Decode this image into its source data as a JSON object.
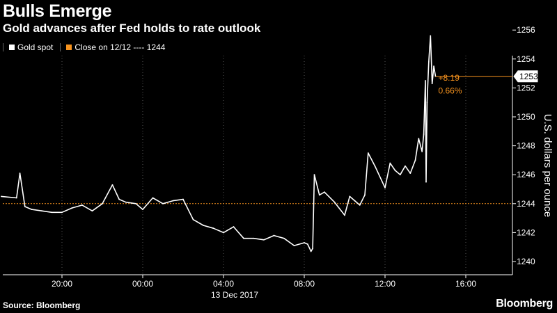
{
  "header": {
    "title": "Bulls Emerge",
    "subtitle": "Gold advances after Fed holds to rate outlook"
  },
  "legend": {
    "gold_label": "Gold spot",
    "close_label": "Close on 12/12 ---- 1244"
  },
  "footer": {
    "source": "Source: Bloomberg",
    "brand": "Bloomberg"
  },
  "colors": {
    "background": "#000000",
    "series": "#ffffff",
    "reference": "#f7931e",
    "grid": "#555555"
  },
  "chart_data": {
    "type": "line",
    "title": "Bulls Emerge",
    "subtitle": "Gold advances after Fed holds to rate outlook",
    "xlabel": "13 Dec 2017",
    "ylabel": "U.S. dollars per ounce",
    "ylim": [
      1239,
      1257
    ],
    "xlim": [
      "12/12 17:00",
      "12/13 18:00"
    ],
    "y_ticks": [
      "1240",
      "1242",
      "1244",
      "1246",
      "1248",
      "1250",
      "1252",
      "1254",
      "1256"
    ],
    "x_ticks": [
      "20:00",
      "00:00",
      "04:00",
      "08:00",
      "12:00",
      "16:00"
    ],
    "x_axis_note": "13 Dec 2017",
    "grid": "vertical dashed",
    "legend_position": "top-left",
    "series": [
      {
        "name": "Gold spot",
        "x": [
          "12/12 17:00",
          "12/12 17:45",
          "12/12 17:55",
          "12/12 18:10",
          "12/12 18:30",
          "12/12 19:00",
          "12/12 19:30",
          "12/12 20:00",
          "12/12 20:30",
          "12/12 21:00",
          "12/12 21:30",
          "12/12 22:00",
          "12/12 22:30",
          "12/12 22:50",
          "12/12 23:10",
          "12/12 23:40",
          "12/13 00:00",
          "12/13 00:30",
          "12/13 01:00",
          "12/13 01:30",
          "12/13 02:00",
          "12/13 02:30",
          "12/13 03:00",
          "12/13 03:30",
          "12/13 04:00",
          "12/13 04:30",
          "12/13 05:00",
          "12/13 05:30",
          "12/13 06:00",
          "12/13 06:30",
          "12/13 07:00",
          "12/13 07:30",
          "12/13 08:00",
          "12/13 08:10",
          "12/13 08:20",
          "12/13 08:25",
          "12/13 08:30",
          "12/13 08:45",
          "12/13 09:00",
          "12/13 09:30",
          "12/13 10:00",
          "12/13 10:15",
          "12/13 10:30",
          "12/13 10:45",
          "12/13 11:00",
          "12/13 11:10",
          "12/13 11:30",
          "12/13 12:00",
          "12/13 12:15",
          "12/13 12:30",
          "12/13 12:45",
          "12/13 13:00",
          "12/13 13:15",
          "12/13 13:30",
          "12/13 13:40",
          "12/13 13:50",
          "12/13 13:55",
          "12/13 14:00",
          "12/13 14:02",
          "12/13 14:05",
          "12/13 14:10",
          "12/13 14:15",
          "12/13 14:20",
          "12/13 14:25",
          "12/13 14:30"
        ],
        "values": [
          1244.5,
          1244.4,
          1246.1,
          1243.8,
          1243.6,
          1243.5,
          1243.4,
          1243.4,
          1243.7,
          1243.9,
          1243.5,
          1244.0,
          1245.3,
          1244.3,
          1244.1,
          1244.0,
          1243.6,
          1244.4,
          1244.0,
          1244.2,
          1244.3,
          1242.9,
          1242.5,
          1242.3,
          1242.0,
          1242.4,
          1241.6,
          1241.6,
          1241.5,
          1241.8,
          1241.6,
          1241.1,
          1241.3,
          1241.2,
          1240.7,
          1240.9,
          1246.0,
          1244.6,
          1244.8,
          1244.1,
          1243.2,
          1244.5,
          1244.2,
          1243.9,
          1244.6,
          1247.5,
          1246.6,
          1245.1,
          1246.8,
          1246.3,
          1246.0,
          1246.6,
          1246.1,
          1247.0,
          1248.5,
          1247.6,
          1248.8,
          1252.5,
          1245.5,
          1251.0,
          1253.8,
          1255.6,
          1252.3,
          1253.5,
          1252.8
        ]
      }
    ],
    "reference_line": {
      "label": "Close on 12/12",
      "value": 1244
    },
    "annotations": {
      "last_value": "1253",
      "change": "+8.19",
      "change_pct": "0.66%"
    }
  }
}
